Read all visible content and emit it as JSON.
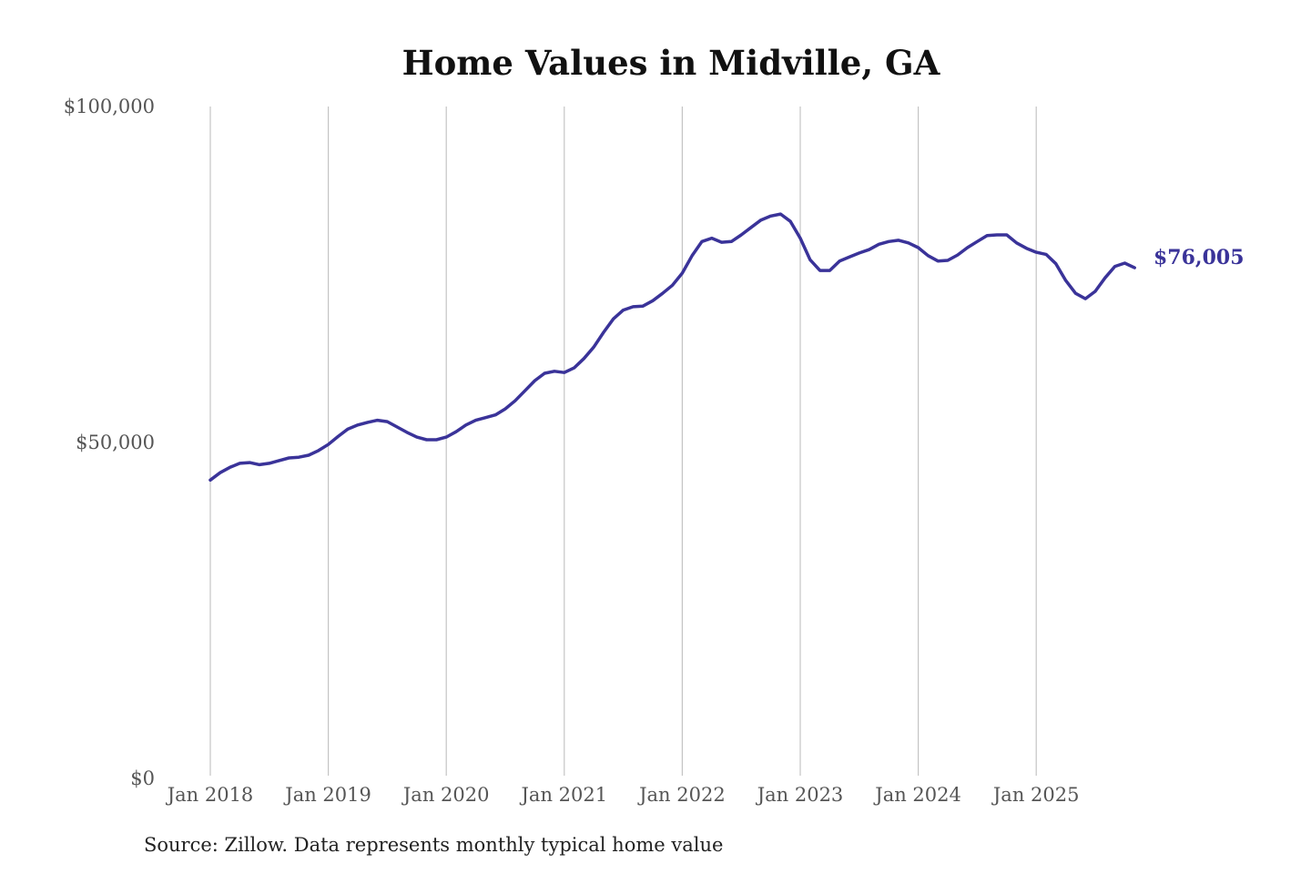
{
  "chart_data": {
    "type": "line",
    "title": "Home Values in Midville, GA",
    "xlabel": "",
    "ylabel": "",
    "ylim": [
      0,
      100000
    ],
    "y_ticks": [
      {
        "value": 0,
        "label": "$0"
      },
      {
        "value": 50000,
        "label": "$50,000"
      },
      {
        "value": 100000,
        "label": "$100,000"
      }
    ],
    "x_ticks": [
      "Jan 2018",
      "Jan 2019",
      "Jan 2020",
      "Jan 2021",
      "Jan 2022",
      "Jan 2023",
      "Jan 2024",
      "Jan 2025"
    ],
    "x_start": "2018-01",
    "x_frequency": "monthly",
    "grid": "vertical lines at each January",
    "legend": "none",
    "line_color": "#3a3399",
    "end_label": "$76,005",
    "series": [
      {
        "values": [
          44400,
          45500,
          46300,
          46900,
          47000,
          46700,
          46900,
          47300,
          47700,
          47800,
          48100,
          48800,
          49700,
          50900,
          52000,
          52600,
          53000,
          53300,
          53100,
          52300,
          51500,
          50800,
          50400,
          50400,
          50800,
          51600,
          52600,
          53300,
          53700,
          54100,
          55000,
          56200,
          57700,
          59200,
          60300,
          60600,
          60400,
          61100,
          62500,
          64200,
          66400,
          68400,
          69700,
          70200,
          70300,
          71100,
          72200,
          73400,
          75200,
          77800,
          79900,
          80400,
          79800,
          79900,
          80900,
          82000,
          83100,
          83700,
          84000,
          82900,
          80400,
          77200,
          75600,
          75600,
          77000,
          77600,
          78200,
          78700,
          79500,
          79900,
          80100,
          79700,
          79000,
          77800,
          77000,
          77100,
          77900,
          79000,
          79900,
          80800,
          80900,
          80900,
          79700,
          78900,
          78300,
          78000,
          76600,
          74100,
          72200,
          71400,
          72500,
          74500,
          76200,
          76700,
          76005
        ]
      }
    ]
  },
  "source": "Source: Zillow. Data represents monthly typical home value"
}
